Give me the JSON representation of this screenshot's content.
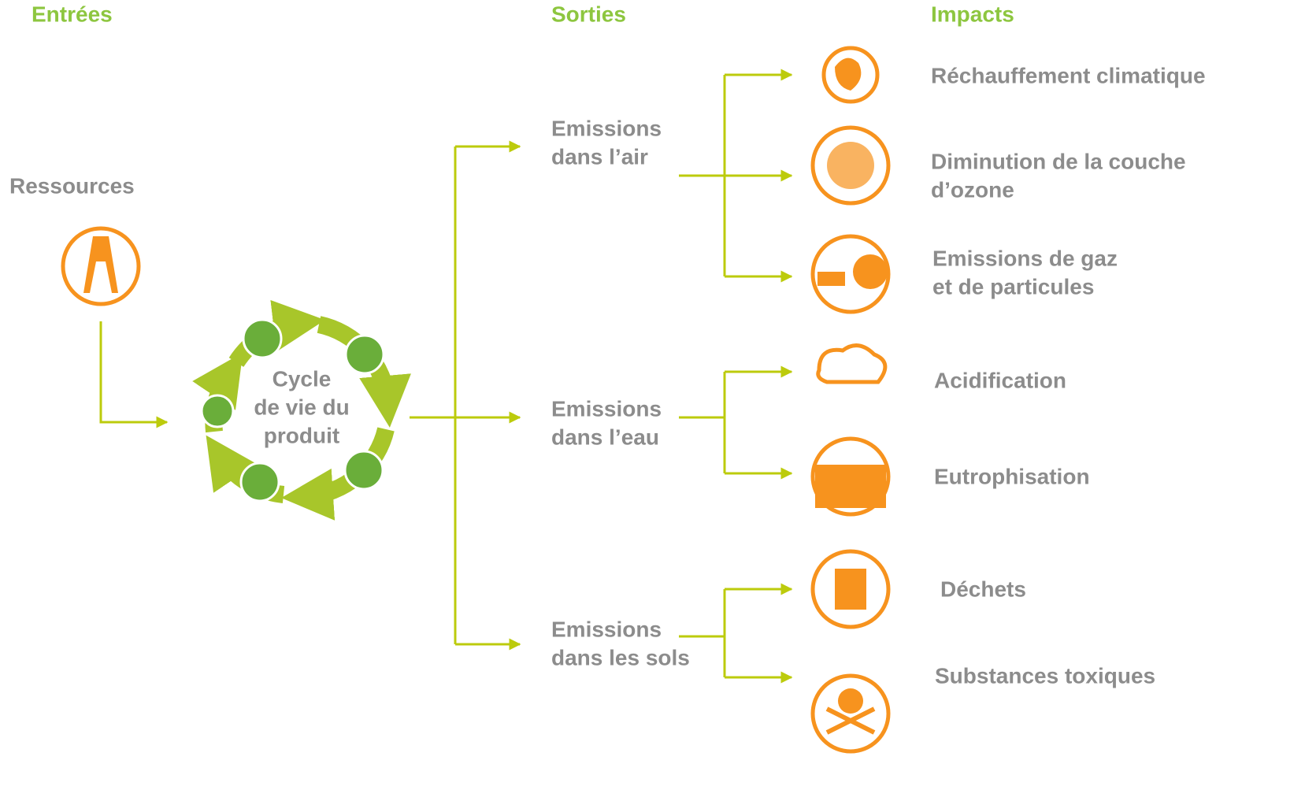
{
  "columns": {
    "inputs": "Entrées",
    "outputs": "Sorties",
    "impacts": "Impacts"
  },
  "resource": "Ressources",
  "cycle": [
    "Cycle",
    "de vie du",
    "produit"
  ],
  "outputs": [
    [
      "Emissions",
      "dans l’air"
    ],
    [
      "Emissions",
      "dans l’eau"
    ],
    [
      "Emissions",
      "dans les sols"
    ]
  ],
  "impacts": [
    [
      "Réchauffement climatique"
    ],
    [
      "Diminution de la couche",
      "d’ozone"
    ],
    [
      "Emissions de gaz",
      "et de particules"
    ],
    [
      "Acidification"
    ],
    [
      "Eutrophisation"
    ],
    [
      "Déchets"
    ],
    [
      "Substances toxiques"
    ]
  ]
}
